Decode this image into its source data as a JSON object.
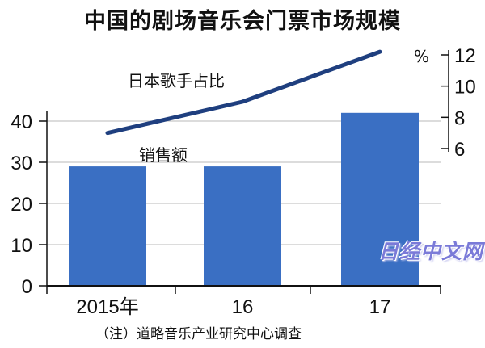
{
  "title": "中国的剧场音乐会门票市场规模",
  "source_note": "（注）道略音乐产业研究中心调查",
  "watermark": "日经中文网",
  "chart_data": {
    "type": "bar+line",
    "categories": [
      "2015年",
      "16",
      "17"
    ],
    "series": [
      {
        "name": "销售额",
        "type": "bar",
        "axis": "left",
        "values": [
          29,
          29,
          42
        ],
        "color": "#3a6fc3"
      },
      {
        "name": "日本歌手占比",
        "type": "line",
        "axis": "right",
        "values": [
          7.0,
          9.0,
          12.2
        ],
        "color": "#1f3f7f"
      }
    ],
    "left_axis": {
      "ylim": [
        0,
        45
      ],
      "ticks": [
        0,
        10,
        20,
        30,
        40
      ]
    },
    "right_axis": {
      "unit": "%",
      "ylim": [
        6,
        12
      ],
      "ticks": [
        6,
        8,
        10,
        12
      ]
    },
    "grid": true
  }
}
